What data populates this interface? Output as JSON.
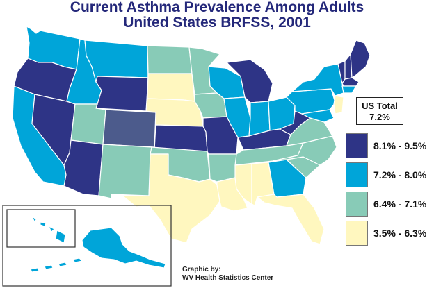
{
  "title": {
    "line1": "Current Asthma Prevalence Among Adults",
    "line2": "United States BRFSS, 2001"
  },
  "us_total": {
    "label": "US Total",
    "value": "7.2%"
  },
  "legend": {
    "items": [
      {
        "label": "8.1% - 9.5%",
        "color": "#2e3486"
      },
      {
        "label": "7.2% - 8.0%",
        "color": "#00a5d9"
      },
      {
        "label": "6.4% - 7.1%",
        "color": "#88cbb7"
      },
      {
        "label": "3.5% - 6.3%",
        "color": "#fff7bf"
      }
    ]
  },
  "special_colors": {
    "colorado": "#4c5b8c",
    "border": "#ffffff",
    "inset_frame": "#333333"
  },
  "credit": {
    "line1": "Graphic by:",
    "line2": "WV Health Statistics Center"
  },
  "regions": [
    {
      "name": "Washington",
      "class": "7.2-8.0"
    },
    {
      "name": "Oregon",
      "class": "8.1-9.5"
    },
    {
      "name": "California",
      "class": "7.2-8.0"
    },
    {
      "name": "Nevada",
      "class": "8.1-9.5"
    },
    {
      "name": "Idaho",
      "class": "7.2-8.0"
    },
    {
      "name": "Montana",
      "class": "7.2-8.0"
    },
    {
      "name": "Wyoming",
      "class": "8.1-9.5"
    },
    {
      "name": "Utah",
      "class": "6.4-7.1"
    },
    {
      "name": "Arizona",
      "class": "8.1-9.5"
    },
    {
      "name": "Colorado",
      "class": "special"
    },
    {
      "name": "New Mexico",
      "class": "6.4-7.1"
    },
    {
      "name": "North Dakota",
      "class": "6.4-7.1"
    },
    {
      "name": "South Dakota",
      "class": "3.5-6.3"
    },
    {
      "name": "Nebraska",
      "class": "3.5-6.3"
    },
    {
      "name": "Kansas",
      "class": "8.1-9.5"
    },
    {
      "name": "Oklahoma",
      "class": "6.4-7.1"
    },
    {
      "name": "Texas",
      "class": "3.5-6.3"
    },
    {
      "name": "Minnesota",
      "class": "6.4-7.1"
    },
    {
      "name": "Iowa",
      "class": "6.4-7.1"
    },
    {
      "name": "Missouri",
      "class": "8.1-9.5"
    },
    {
      "name": "Arkansas",
      "class": "6.4-7.1"
    },
    {
      "name": "Louisiana",
      "class": "3.5-6.3"
    },
    {
      "name": "Wisconsin",
      "class": "7.2-8.0"
    },
    {
      "name": "Illinois",
      "class": "7.2-8.0"
    },
    {
      "name": "Michigan",
      "class": "8.1-9.5"
    },
    {
      "name": "Indiana",
      "class": "7.2-8.0"
    },
    {
      "name": "Ohio",
      "class": "7.2-8.0"
    },
    {
      "name": "Kentucky",
      "class": "8.1-9.5"
    },
    {
      "name": "Tennessee",
      "class": "6.4-7.1"
    },
    {
      "name": "Mississippi",
      "class": "3.5-6.3"
    },
    {
      "name": "Alabama",
      "class": "3.5-6.3"
    },
    {
      "name": "Georgia",
      "class": "7.2-8.0"
    },
    {
      "name": "Florida",
      "class": "3.5-6.3"
    },
    {
      "name": "South Carolina",
      "class": "6.4-7.1"
    },
    {
      "name": "North Carolina",
      "class": "6.4-7.1"
    },
    {
      "name": "Virginia",
      "class": "6.4-7.1"
    },
    {
      "name": "West Virginia",
      "class": "8.1-9.5"
    },
    {
      "name": "Pennsylvania",
      "class": "7.2-8.0"
    },
    {
      "name": "New York",
      "class": "7.2-8.0"
    },
    {
      "name": "New Jersey",
      "class": "3.5-6.3"
    },
    {
      "name": "Maryland",
      "class": "7.2-8.0"
    },
    {
      "name": "Vermont",
      "class": "8.1-9.5"
    },
    {
      "name": "New Hampshire",
      "class": "8.1-9.5"
    },
    {
      "name": "Maine",
      "class": "8.1-9.5"
    },
    {
      "name": "Massachusetts",
      "class": "8.1-9.5"
    },
    {
      "name": "Connecticut",
      "class": "7.2-8.0"
    },
    {
      "name": "Alaska",
      "class": "7.2-8.0"
    },
    {
      "name": "Hawaii",
      "class": "7.2-8.0"
    }
  ]
}
